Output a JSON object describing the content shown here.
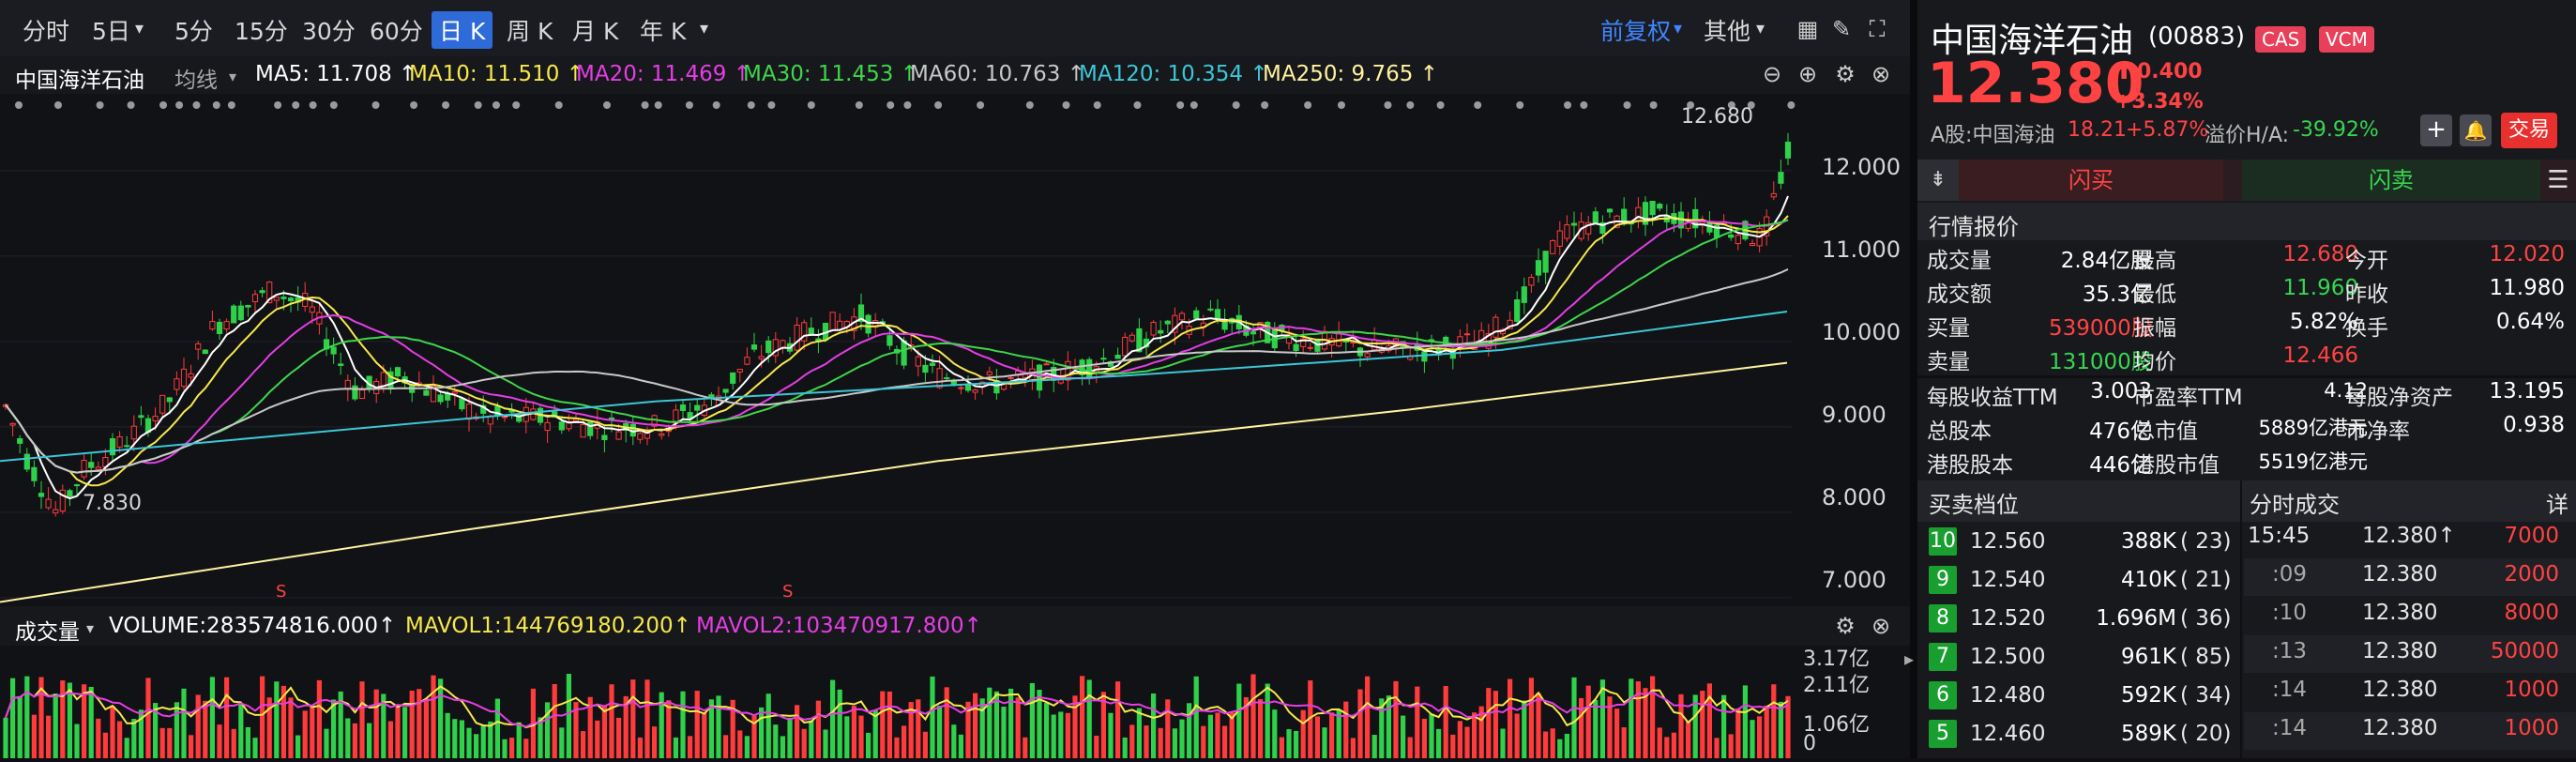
{
  "toolbar": {
    "periods": [
      "分时",
      "5日",
      "5分",
      "15分",
      "30分",
      "60分",
      "日 K",
      "周 K",
      "月 K",
      "年 K"
    ],
    "selected": "日 K",
    "adjust": "前复权",
    "other": "其他"
  },
  "ma_bar": {
    "name": "中国海洋石油",
    "type": "均线",
    "items": [
      {
        "label": "MA5: 11.708 ↑",
        "color": "#ffffff"
      },
      {
        "label": "MA10: 11.510 ↑",
        "color": "#f7e84b"
      },
      {
        "label": "MA20: 11.469 ↑",
        "color": "#e43ee4"
      },
      {
        "label": "MA30: 11.453 ↑",
        "color": "#3ed64a"
      },
      {
        "label": "MA60: 10.763 ↑",
        "color": "#c8c8c8"
      },
      {
        "label": "MA120: 10.354 ↑",
        "color": "#3cc6d6"
      },
      {
        "label": "MA250: 9.765 ↑",
        "color": "#fff2a0"
      }
    ]
  },
  "chart_data": {
    "type": "candlestick",
    "y_ticks": [
      "12.000",
      "11.000",
      "10.000",
      "9.000",
      "8.000",
      "7.000"
    ],
    "ylim": [
      6.9,
      12.9
    ],
    "high_label": "12.680",
    "low_label": "7.830",
    "markers": [
      "S",
      "S"
    ]
  },
  "volume": {
    "title": "成交量",
    "volume": "VOLUME:283574816.000↑",
    "mavol1": "MAVOL1:144769180.200↑",
    "mavol2": "MAVOL2:103470917.800↑",
    "ticks": [
      "3.17亿",
      "2.11亿",
      "1.06亿",
      "0"
    ]
  },
  "quote": {
    "name": "中国海洋石油",
    "code": "(00883)",
    "badges": [
      "CAS",
      "VCM"
    ],
    "price": "12.380",
    "change": "0.400",
    "change_pct": "+3.34%",
    "a_share": "A股:中国海油",
    "a_price": "18.21",
    "a_pct": "+5.87%",
    "premium_label": "溢价H/A:",
    "premium": "-39.92%",
    "trade": "交易",
    "flash_buy": "闪买",
    "flash_sell": "闪卖"
  },
  "market": {
    "title": "行情报价",
    "rows": [
      [
        [
          "成交量",
          "2.84亿股",
          "white"
        ],
        [
          "最高",
          "12.680",
          "red"
        ],
        [
          "今开",
          "12.020",
          "red"
        ]
      ],
      [
        [
          "成交额",
          "35.3亿",
          "white"
        ],
        [
          "最低",
          "11.960",
          "green"
        ],
        [
          "昨收",
          "11.980",
          "white"
        ]
      ],
      [
        [
          "买量",
          "539000股",
          "red"
        ],
        [
          "振幅",
          "5.82%",
          "white"
        ],
        [
          "换手",
          "0.64%",
          "white"
        ]
      ],
      [
        [
          "卖量",
          "131000股",
          "green"
        ],
        [
          "均价",
          "12.466",
          "red"
        ],
        [
          "",
          "",
          " "
        ]
      ]
    ],
    "rows2": [
      [
        [
          "每股收益TTM",
          "3.003"
        ],
        [
          "市盈率TTM",
          "4.12"
        ],
        [
          "每股净资产",
          "13.195"
        ]
      ],
      [
        [
          "总股本",
          "476亿"
        ],
        [
          "总市值",
          "5889亿港元"
        ],
        [
          "市净率",
          "0.938"
        ]
      ],
      [
        [
          "港股股本",
          "446亿"
        ],
        [
          "港股市值",
          "5519亿港元"
        ],
        [
          "",
          ""
        ]
      ]
    ]
  },
  "orderbook": {
    "title": "买卖档位",
    "levels": [
      {
        "n": "10",
        "price": "12.560",
        "vol": "388K",
        "cnt": "( 23)"
      },
      {
        "n": "9",
        "price": "12.540",
        "vol": "410K",
        "cnt": "( 21)"
      },
      {
        "n": "8",
        "price": "12.520",
        "vol": "1.696M",
        "cnt": "( 36)"
      },
      {
        "n": "7",
        "price": "12.500",
        "vol": "961K",
        "cnt": "( 85)"
      },
      {
        "n": "6",
        "price": "12.480",
        "vol": "592K",
        "cnt": "( 34)"
      },
      {
        "n": "5",
        "price": "12.460",
        "vol": "589K",
        "cnt": "( 20)"
      }
    ]
  },
  "ticks": {
    "title": "分时成交",
    "detail": "详",
    "rows": [
      {
        "t": "15:45",
        "p": "12.380↑",
        "v": "7000"
      },
      {
        "t": ":09",
        "p": "12.380",
        "v": "2000"
      },
      {
        "t": ":10",
        "p": "12.380",
        "v": "8000"
      },
      {
        "t": ":13",
        "p": "12.380",
        "v": "50000"
      },
      {
        "t": ":14",
        "p": "12.380",
        "v": "1000"
      },
      {
        "t": ":14",
        "p": "12.380",
        "v": "1000"
      }
    ]
  }
}
